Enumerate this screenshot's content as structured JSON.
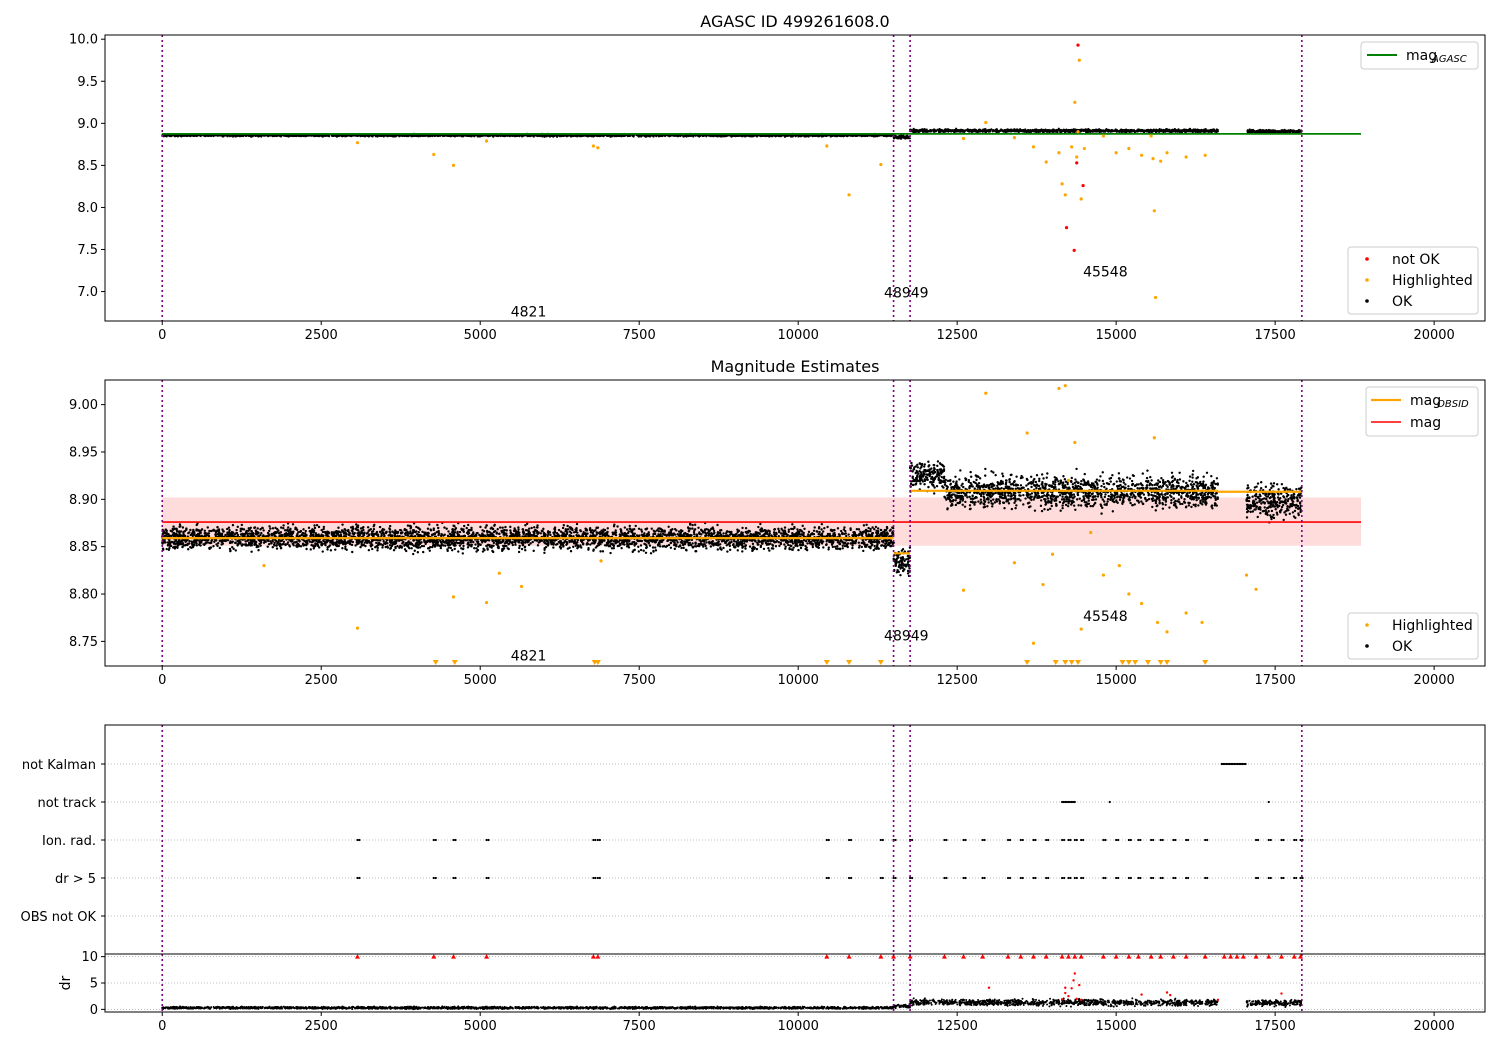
{
  "chart_data": [
    {
      "type": "scatter",
      "title": "AGASC ID 499261608.0",
      "xlim": [
        -900,
        20800
      ],
      "ylim": [
        6.65,
        10.05
      ],
      "xticks": [
        0,
        2500,
        5000,
        7500,
        10000,
        12500,
        15000,
        17500,
        20000
      ],
      "xtick_labels": [
        "0",
        "2500",
        "5000",
        "7500",
        "10000",
        "12500",
        "15000",
        "17500",
        "20000"
      ],
      "yticks": [
        7.0,
        7.5,
        8.0,
        8.5,
        9.0,
        9.5,
        10.0
      ],
      "ytick_labels": [
        "7.0",
        "7.5",
        "8.0",
        "8.5",
        "9.0",
        "9.5",
        "10.0"
      ],
      "obs_boundaries": [
        0,
        11500,
        11760,
        17920
      ],
      "obs_labels": [
        {
          "text": "4821",
          "x": 5480,
          "y": 6.76
        },
        {
          "text": "48949",
          "x": 11350,
          "y": 6.99
        },
        {
          "text": "45548",
          "x": 14480,
          "y": 7.24
        }
      ],
      "mag_agasc": 8.875,
      "mag_agasc_range": [
        0,
        18850
      ],
      "ok_bands": [
        {
          "x": [
            0,
            11500
          ],
          "y": 8.858,
          "spread": 0.02
        },
        {
          "x": [
            11500,
            11760
          ],
          "y": 8.835,
          "spread": 0.03
        },
        {
          "x": [
            11760,
            16600
          ],
          "y": 8.912,
          "spread": 0.025
        },
        {
          "x": [
            17050,
            17920
          ],
          "y": 8.905,
          "spread": 0.025
        }
      ],
      "highlighted": [
        [
          3070,
          8.77
        ],
        [
          4270,
          8.63
        ],
        [
          4580,
          8.5
        ],
        [
          5100,
          8.79
        ],
        [
          6780,
          8.73
        ],
        [
          6850,
          8.71
        ],
        [
          10450,
          8.73
        ],
        [
          10800,
          8.15
        ],
        [
          11300,
          8.51
        ],
        [
          12600,
          8.82
        ],
        [
          12950,
          9.01
        ],
        [
          13400,
          8.83
        ],
        [
          13700,
          8.72
        ],
        [
          13900,
          8.54
        ],
        [
          14100,
          8.65
        ],
        [
          14150,
          8.28
        ],
        [
          14200,
          8.15
        ],
        [
          14300,
          8.72
        ],
        [
          14350,
          9.25
        ],
        [
          14380,
          8.6
        ],
        [
          14400,
          8.9
        ],
        [
          14420,
          9.75
        ],
        [
          14450,
          8.1
        ],
        [
          14500,
          8.7
        ],
        [
          14800,
          8.85
        ],
        [
          15000,
          8.65
        ],
        [
          15200,
          8.7
        ],
        [
          15400,
          8.62
        ],
        [
          15550,
          8.85
        ],
        [
          15580,
          8.58
        ],
        [
          15600,
          7.96
        ],
        [
          15620,
          6.93
        ],
        [
          15700,
          8.55
        ],
        [
          15800,
          8.65
        ],
        [
          16100,
          8.6
        ],
        [
          16400,
          8.62
        ]
      ],
      "not_ok": [
        [
          14220,
          7.76
        ],
        [
          14340,
          7.49
        ],
        [
          14380,
          8.53
        ],
        [
          14400,
          9.93
        ],
        [
          14480,
          8.26
        ]
      ],
      "legend": {
        "line": "mag",
        "line_sub": "AGASC",
        "points": [
          "not OK",
          "Highlighted",
          "OK"
        ]
      },
      "colors": {
        "ok": "#000000",
        "highlighted": "#FFA500",
        "not_ok": "#FF0000",
        "mag_agasc": "#008000",
        "boundary": "#800080"
      }
    },
    {
      "type": "scatter",
      "title": "Magnitude Estimates",
      "xlim": [
        -900,
        20800
      ],
      "ylim": [
        8.724,
        9.026
      ],
      "xticks": [
        0,
        2500,
        5000,
        7500,
        10000,
        12500,
        15000,
        17500,
        20000
      ],
      "xtick_labels": [
        "0",
        "2500",
        "5000",
        "7500",
        "10000",
        "12500",
        "15000",
        "17500",
        "20000"
      ],
      "yticks": [
        8.75,
        8.8,
        8.85,
        8.9,
        8.95,
        9.0
      ],
      "ytick_labels": [
        "8.75",
        "8.80",
        "8.85",
        "8.90",
        "8.95",
        "9.00"
      ],
      "obs_boundaries": [
        0,
        11500,
        11760,
        17920
      ],
      "obs_labels": [
        {
          "text": "4821",
          "x": 5480,
          "y": 8.735
        },
        {
          "text": "48949",
          "x": 11350,
          "y": 8.756
        },
        {
          "text": "45548",
          "x": 14480,
          "y": 8.777
        }
      ],
      "mag": 8.876,
      "mag_band": [
        8.851,
        8.902
      ],
      "mag_range": [
        0,
        18850
      ],
      "mag_obsid": [
        {
          "x": [
            0,
            11500
          ],
          "y": 8.859
        },
        {
          "x": [
            11500,
            11760
          ],
          "y": 8.843
        },
        {
          "x": [
            11760,
            16600
          ],
          "y": 8.909
        },
        {
          "x": [
            16600,
            17920
          ],
          "y": 8.908
        }
      ],
      "ok_bands": [
        {
          "x": [
            0,
            11500
          ],
          "y": 8.859,
          "spread": 0.018
        },
        {
          "x": [
            11500,
            11760
          ],
          "y": 8.835,
          "spread": 0.022
        },
        {
          "x": [
            11760,
            12300
          ],
          "y": 8.925,
          "spread": 0.02
        },
        {
          "x": [
            12300,
            16600
          ],
          "y": 8.908,
          "spread": 0.025
        },
        {
          "x": [
            17050,
            17920
          ],
          "y": 8.898,
          "spread": 0.025
        }
      ],
      "highlighted": [
        [
          3070,
          8.764
        ],
        [
          4580,
          8.797
        ],
        [
          5100,
          8.791
        ],
        [
          5300,
          8.822
        ],
        [
          5650,
          8.808
        ],
        [
          1600,
          8.83
        ],
        [
          6900,
          8.835
        ],
        [
          12600,
          8.804
        ],
        [
          12950,
          9.012
        ],
        [
          13400,
          8.833
        ],
        [
          13700,
          8.748
        ],
        [
          13850,
          8.81
        ],
        [
          14000,
          8.842
        ],
        [
          14100,
          9.017
        ],
        [
          14200,
          9.02
        ],
        [
          14350,
          8.96
        ],
        [
          14450,
          8.763
        ],
        [
          14600,
          8.865
        ],
        [
          14800,
          8.82
        ],
        [
          15050,
          8.83
        ],
        [
          15200,
          8.8
        ],
        [
          15400,
          8.79
        ],
        [
          15600,
          8.965
        ],
        [
          15650,
          8.77
        ],
        [
          15800,
          8.76
        ],
        [
          16100,
          8.78
        ],
        [
          16350,
          8.77
        ],
        [
          17050,
          8.82
        ],
        [
          17200,
          8.805
        ],
        [
          13600,
          8.97
        ],
        [
          14250,
          8.92
        ]
      ],
      "clipped_low": [
        4300,
        4600,
        6800,
        6850,
        10450,
        10800,
        11300,
        13600,
        14050,
        14200,
        14300,
        14400,
        15100,
        15200,
        15300,
        15500,
        15700,
        15800,
        16400
      ],
      "legend": {
        "line1": "mag",
        "line1_sub": "OBSID",
        "line2": "mag",
        "points": [
          "Highlighted",
          "OK"
        ]
      },
      "colors": {
        "ok": "#000000",
        "highlighted": "#FFA500",
        "mag": "#FF0000",
        "mag_band": "#FFDCDC",
        "mag_obsid": "#FFA500",
        "boundary": "#800080"
      }
    },
    {
      "type": "scatter",
      "xlim": [
        -900,
        20800
      ],
      "flag_rows": [
        "not Kalman",
        "not track",
        "Ion. rad.",
        "dr > 5",
        "OBS not OK"
      ],
      "flags": {
        "not Kalman": [
          [
            16660,
            17040
          ]
        ],
        "not track": [
          [
            14150,
            14350
          ],
          [
            14900,
            14920
          ],
          [
            17400,
            17410
          ]
        ],
        "Ion. rad.": [
          3070,
          4270,
          4580,
          5100,
          6780,
          6850,
          10450,
          10800,
          11300,
          11500,
          11760,
          12300,
          12600,
          12900,
          13300,
          13500,
          13700,
          13900,
          14150,
          14250,
          14350,
          14450,
          14800,
          15000,
          15200,
          15350,
          15550,
          15700,
          15900,
          16100,
          16400,
          17200,
          17400,
          17600,
          17800,
          17900
        ],
        "dr > 5": [
          3070,
          4270,
          4580,
          5100,
          6780,
          6850,
          10450,
          10800,
          11300,
          11500,
          11760,
          12300,
          12600,
          12900,
          13300,
          13500,
          13700,
          13900,
          14150,
          14250,
          14350,
          14450,
          14800,
          15000,
          15200,
          15350,
          15550,
          15700,
          15900,
          16100,
          16400,
          17200,
          17400,
          17600,
          17800,
          17900
        ],
        "OBS not OK": []
      },
      "dr_panel": {
        "ylabel": "dr",
        "ylim": [
          -0.5,
          10.5
        ],
        "yticks": [
          0,
          5,
          10
        ],
        "ytick_labels": [
          "0",
          "5",
          "10"
        ],
        "xticks": [
          0,
          2500,
          5000,
          7500,
          10000,
          12500,
          15000,
          17500,
          20000
        ],
        "xtick_labels": [
          "0",
          "2500",
          "5000",
          "7500",
          "10000",
          "12500",
          "15000",
          "17500",
          "20000"
        ],
        "dr_bands": [
          {
            "x": [
              0,
              11500
            ],
            "y": 0.3,
            "spread": 0.3
          },
          {
            "x": [
              11500,
              11760
            ],
            "y": 0.6,
            "spread": 0.5
          },
          {
            "x": [
              11760,
              16600
            ],
            "y": 1.3,
            "spread": 0.9
          },
          {
            "x": [
              17050,
              17920
            ],
            "y": 1.2,
            "spread": 0.8
          }
        ],
        "clipped_at_10": [
          3070,
          4270,
          4580,
          5100,
          6780,
          6850,
          10450,
          10800,
          11300,
          11500,
          11760,
          12300,
          12600,
          12900,
          13300,
          13500,
          13700,
          13900,
          14150,
          14250,
          14350,
          14450,
          14800,
          15000,
          15200,
          15350,
          15550,
          15700,
          15900,
          16100,
          16400,
          16700,
          16800,
          16900,
          17000,
          17200,
          17400,
          17600,
          17800,
          17900
        ],
        "red_scatter": [
          [
            14200,
            3.1
          ],
          [
            14250,
            2.5
          ],
          [
            14300,
            4.0
          ],
          [
            14330,
            5.5
          ],
          [
            14350,
            6.8
          ],
          [
            14380,
            2.0
          ],
          [
            14420,
            4.6
          ],
          [
            14200,
            4.1
          ],
          [
            14150,
            1.9
          ],
          [
            14450,
            1.8
          ],
          [
            15800,
            3.2
          ],
          [
            15850,
            2.7
          ],
          [
            16600,
            1.8
          ],
          [
            17600,
            3.0
          ],
          [
            13000,
            4.1
          ],
          [
            15400,
            2.8
          ]
        ]
      },
      "obs_boundaries": [
        0,
        11500,
        11760,
        17920
      ],
      "colors": {
        "ok": "#000000",
        "red": "#FF0000",
        "boundary": "#800080",
        "grid": "#AAAAAA"
      }
    }
  ]
}
